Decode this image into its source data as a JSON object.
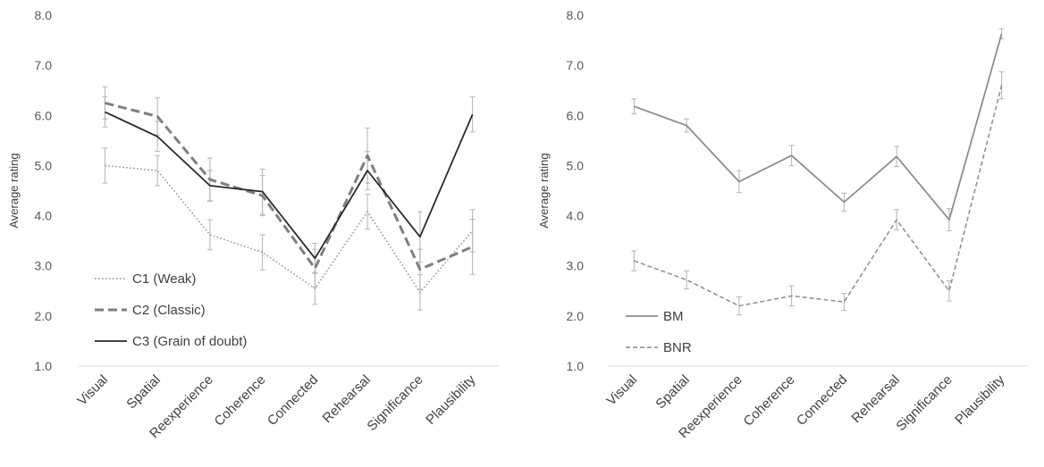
{
  "chart_data": [
    {
      "type": "line",
      "ylabel": "Average rating",
      "ylim": [
        1.0,
        8.0
      ],
      "yticks": [
        "1.0",
        "2.0",
        "3.0",
        "4.0",
        "5.0",
        "6.0",
        "7.0",
        "8.0"
      ],
      "categories": [
        "Visual",
        "Spatial",
        "Reexperience",
        "Coherence",
        "Connected",
        "Rehearsal",
        "Significance",
        "Plausibility"
      ],
      "legend_position": "bottom-left",
      "series": [
        {
          "name": "C1 (Weak)",
          "style": "dotted",
          "color": "#8c8c8c",
          "values": [
            5.0,
            4.9,
            3.62,
            3.27,
            2.55,
            4.08,
            2.47,
            3.7
          ],
          "errors": [
            0.35,
            0.3,
            0.3,
            0.35,
            0.32,
            0.35,
            0.35,
            0.42
          ]
        },
        {
          "name": "C2 (Classic)",
          "style": "dashed",
          "color": "#7f7f7f",
          "values": [
            6.25,
            5.98,
            4.72,
            4.4,
            2.95,
            5.2,
            2.93,
            3.38
          ],
          "errors": [
            0.32,
            0.37,
            0.43,
            0.4,
            0.38,
            0.55,
            0.4,
            0.55
          ]
        },
        {
          "name": "C3 (Grain of doubt)",
          "style": "solid",
          "color": "#262626",
          "values": [
            6.07,
            5.58,
            4.6,
            4.48,
            3.15,
            4.9,
            3.58,
            6.02
          ],
          "errors": [
            0.3,
            0.3,
            0.3,
            0.45,
            0.3,
            0.38,
            0.5,
            0.35
          ]
        }
      ]
    },
    {
      "type": "line",
      "ylabel": "Average rating",
      "ylim": [
        1.0,
        8.0
      ],
      "yticks": [
        "1.0",
        "2.0",
        "3.0",
        "4.0",
        "5.0",
        "6.0",
        "7.0",
        "8.0"
      ],
      "categories": [
        "Visual",
        "Spatial",
        "Reexperience",
        "Coherence",
        "Connected",
        "Rehearsal",
        "Significance",
        "Plausibility"
      ],
      "legend_position": "bottom-left",
      "series": [
        {
          "name": "BM",
          "style": "solid",
          "color": "#8c8c8c",
          "values": [
            6.18,
            5.8,
            4.68,
            5.2,
            4.27,
            5.18,
            3.92,
            7.63
          ],
          "errors": [
            0.15,
            0.13,
            0.22,
            0.2,
            0.18,
            0.2,
            0.22,
            0.1
          ]
        },
        {
          "name": "BNR",
          "style": "dashed",
          "color": "#8c8c8c",
          "values": [
            3.1,
            2.72,
            2.2,
            2.4,
            2.28,
            3.92,
            2.5,
            6.6
          ],
          "errors": [
            0.2,
            0.18,
            0.18,
            0.2,
            0.17,
            0.2,
            0.2,
            0.27
          ]
        }
      ]
    }
  ]
}
